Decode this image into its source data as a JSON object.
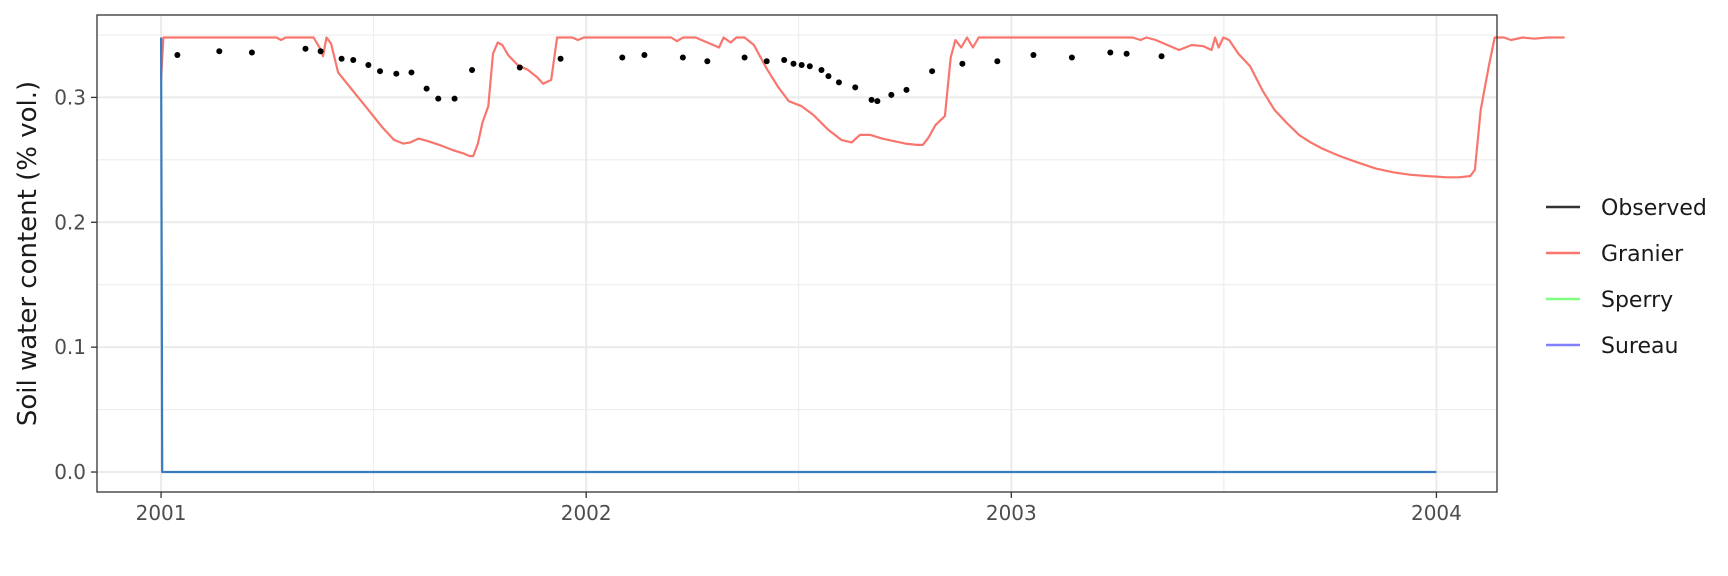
{
  "chart_data": {
    "type": "line",
    "title": "",
    "xlabel": "",
    "ylabel": "Soil water content (% vol.)",
    "x_ticks": [
      "2001",
      "2002",
      "2003",
      "2004"
    ],
    "y_ticks": [
      "0.0",
      "0.1",
      "0.2",
      "0.3"
    ],
    "xlim": [
      "2000-11-07",
      "2004-02-22"
    ],
    "ylim": [
      -0.016,
      0.366
    ],
    "grid": true,
    "legend_position": "right",
    "series": [
      {
        "name": "Observed",
        "kind": "points",
        "color": "#000000",
        "legend_color": "#333333",
        "points": [
          [
            "2001-01-15",
            0.334
          ],
          [
            "2001-02-20",
            0.337
          ],
          [
            "2001-03-20",
            0.336
          ],
          [
            "2001-05-05",
            0.339
          ],
          [
            "2001-05-18",
            0.337
          ],
          [
            "2001-06-05",
            0.331
          ],
          [
            "2001-06-15",
            0.33
          ],
          [
            "2001-06-28",
            0.326
          ],
          [
            "2001-07-08",
            0.321
          ],
          [
            "2001-07-22",
            0.319
          ],
          [
            "2001-08-04",
            0.32
          ],
          [
            "2001-08-17",
            0.307
          ],
          [
            "2001-08-27",
            0.299
          ],
          [
            "2001-09-10",
            0.299
          ],
          [
            "2001-09-25",
            0.322
          ],
          [
            "2001-11-05",
            0.324
          ],
          [
            "2001-12-10",
            0.331
          ],
          [
            "2002-02-01",
            0.332
          ],
          [
            "2002-02-20",
            0.334
          ],
          [
            "2002-03-25",
            0.332
          ],
          [
            "2002-04-15",
            0.329
          ],
          [
            "2002-05-17",
            0.332
          ],
          [
            "2002-06-05",
            0.329
          ],
          [
            "2002-06-20",
            0.33
          ],
          [
            "2002-06-28",
            0.327
          ],
          [
            "2002-07-05",
            0.326
          ],
          [
            "2002-07-12",
            0.325
          ],
          [
            "2002-07-22",
            0.322
          ],
          [
            "2002-07-28",
            0.317
          ],
          [
            "2002-08-06",
            0.312
          ],
          [
            "2002-08-20",
            0.308
          ],
          [
            "2002-09-03",
            0.298
          ],
          [
            "2002-09-08",
            0.297
          ],
          [
            "2002-09-20",
            0.302
          ],
          [
            "2002-10-03",
            0.306
          ],
          [
            "2002-10-25",
            0.321
          ],
          [
            "2002-11-20",
            0.327
          ],
          [
            "2002-12-20",
            0.329
          ],
          [
            "2003-01-20",
            0.334
          ],
          [
            "2003-02-22",
            0.332
          ],
          [
            "2003-03-27",
            0.336
          ],
          [
            "2003-04-10",
            0.335
          ],
          [
            "2003-05-10",
            0.333
          ]
        ]
      },
      {
        "name": "Granier",
        "kind": "line",
        "color": "#f8766d",
        "points": [
          [
            "2001-01-01",
            0.315
          ],
          [
            "2001-01-03",
            0.348
          ],
          [
            "2001-02-15",
            0.348
          ],
          [
            "2001-04-10",
            0.348
          ],
          [
            "2001-04-14",
            0.346
          ],
          [
            "2001-04-18",
            0.348
          ],
          [
            "2001-05-12",
            0.348
          ],
          [
            "2001-05-17",
            0.34
          ],
          [
            "2001-05-20",
            0.333
          ],
          [
            "2001-05-23",
            0.348
          ],
          [
            "2001-05-27",
            0.343
          ],
          [
            "2001-06-02",
            0.32
          ],
          [
            "2001-06-15",
            0.305
          ],
          [
            "2001-06-28",
            0.29
          ],
          [
            "2001-07-10",
            0.276
          ],
          [
            "2001-07-20",
            0.266
          ],
          [
            "2001-07-28",
            0.263
          ],
          [
            "2001-08-03",
            0.264
          ],
          [
            "2001-08-10",
            0.267
          ],
          [
            "2001-08-18",
            0.265
          ],
          [
            "2001-08-28",
            0.262
          ],
          [
            "2001-09-08",
            0.258
          ],
          [
            "2001-09-18",
            0.255
          ],
          [
            "2001-09-23",
            0.253
          ],
          [
            "2001-09-26",
            0.253
          ],
          [
            "2001-09-30",
            0.263
          ],
          [
            "2001-10-04",
            0.28
          ],
          [
            "2001-10-09",
            0.293
          ],
          [
            "2001-10-13",
            0.335
          ],
          [
            "2001-10-17",
            0.344
          ],
          [
            "2001-10-21",
            0.342
          ],
          [
            "2001-10-26",
            0.334
          ],
          [
            "2001-11-03",
            0.326
          ],
          [
            "2001-11-12",
            0.322
          ],
          [
            "2001-11-20",
            0.316
          ],
          [
            "2001-11-25",
            0.311
          ],
          [
            "2001-12-02",
            0.314
          ],
          [
            "2001-12-07",
            0.348
          ],
          [
            "2001-12-20",
            0.348
          ],
          [
            "2001-12-25",
            0.346
          ],
          [
            "2001-12-30",
            0.348
          ],
          [
            "2002-02-01",
            0.348
          ],
          [
            "2002-03-15",
            0.348
          ],
          [
            "2002-03-20",
            0.345
          ],
          [
            "2002-03-25",
            0.348
          ],
          [
            "2002-04-05",
            0.348
          ],
          [
            "2002-04-15",
            0.344
          ],
          [
            "2002-04-25",
            0.34
          ],
          [
            "2002-04-29",
            0.348
          ],
          [
            "2002-05-05",
            0.344
          ],
          [
            "2002-05-10",
            0.348
          ],
          [
            "2002-05-17",
            0.348
          ],
          [
            "2002-05-25",
            0.342
          ],
          [
            "2002-06-05",
            0.323
          ],
          [
            "2002-06-15",
            0.308
          ],
          [
            "2002-06-24",
            0.297
          ],
          [
            "2002-07-05",
            0.293
          ],
          [
            "2002-07-15",
            0.286
          ],
          [
            "2002-07-28",
            0.274
          ],
          [
            "2002-08-08",
            0.266
          ],
          [
            "2002-08-17",
            0.264
          ],
          [
            "2002-08-24",
            0.27
          ],
          [
            "2002-09-02",
            0.27
          ],
          [
            "2002-09-12",
            0.267
          ],
          [
            "2002-09-22",
            0.265
          ],
          [
            "2002-10-02",
            0.263
          ],
          [
            "2002-10-12",
            0.262
          ],
          [
            "2002-10-17",
            0.262
          ],
          [
            "2002-10-22",
            0.268
          ],
          [
            "2002-10-28",
            0.278
          ],
          [
            "2002-11-05",
            0.285
          ],
          [
            "2002-11-10",
            0.332
          ],
          [
            "2002-11-14",
            0.346
          ],
          [
            "2002-11-19",
            0.34
          ],
          [
            "2002-11-24",
            0.348
          ],
          [
            "2002-11-29",
            0.34
          ],
          [
            "2002-12-04",
            0.348
          ],
          [
            "2002-12-20",
            0.348
          ],
          [
            "2003-01-15",
            0.348
          ],
          [
            "2003-03-15",
            0.348
          ],
          [
            "2003-04-15",
            0.348
          ],
          [
            "2003-04-22",
            0.346
          ],
          [
            "2003-04-27",
            0.348
          ],
          [
            "2003-05-05",
            0.346
          ],
          [
            "2003-05-15",
            0.342
          ],
          [
            "2003-05-25",
            0.338
          ],
          [
            "2003-06-05",
            0.342
          ],
          [
            "2003-06-15",
            0.341
          ],
          [
            "2003-06-22",
            0.338
          ],
          [
            "2003-06-25",
            0.348
          ],
          [
            "2003-06-28",
            0.34
          ],
          [
            "2003-07-02",
            0.348
          ],
          [
            "2003-07-07",
            0.346
          ],
          [
            "2003-07-15",
            0.335
          ],
          [
            "2003-07-25",
            0.325
          ],
          [
            "2003-08-05",
            0.305
          ],
          [
            "2003-08-15",
            0.29
          ],
          [
            "2003-08-25",
            0.28
          ],
          [
            "2003-09-05",
            0.27
          ],
          [
            "2003-09-15",
            0.264
          ],
          [
            "2003-09-25",
            0.259
          ],
          [
            "2003-10-10",
            0.253
          ],
          [
            "2003-10-25",
            0.248
          ],
          [
            "2003-11-10",
            0.243
          ],
          [
            "2003-11-25",
            0.24
          ],
          [
            "2003-12-10",
            0.238
          ],
          [
            "2003-12-25",
            0.237
          ],
          [
            "2004-01-10",
            0.236
          ],
          [
            "2004-01-20",
            0.236
          ],
          [
            "2004-01-30",
            0.237
          ],
          [
            "2004-02-03",
            0.242
          ],
          [
            "2004-02-08",
            0.29
          ],
          [
            "2004-02-15",
            0.325
          ],
          [
            "2004-02-20",
            0.348
          ],
          [
            "2004-02-28",
            0.348
          ],
          [
            "2004-03-05",
            0.346
          ],
          [
            "2004-03-15",
            0.348
          ],
          [
            "2004-03-25",
            0.347
          ],
          [
            "2004-04-05",
            0.348
          ],
          [
            "2004-04-20",
            0.348
          ]
        ]
      },
      {
        "name": "Sperry",
        "kind": "line",
        "color": "#00ba38",
        "legend_color": "#80ff80",
        "points": []
      },
      {
        "name": "Sureau",
        "kind": "line",
        "color": "#3a7bbf",
        "legend_color": "#8080ff",
        "points": [
          [
            "2001-01-01",
            0.348
          ],
          [
            "2001-01-02",
            0.0
          ],
          [
            "2004-01-01",
            0.0
          ]
        ]
      }
    ]
  }
}
